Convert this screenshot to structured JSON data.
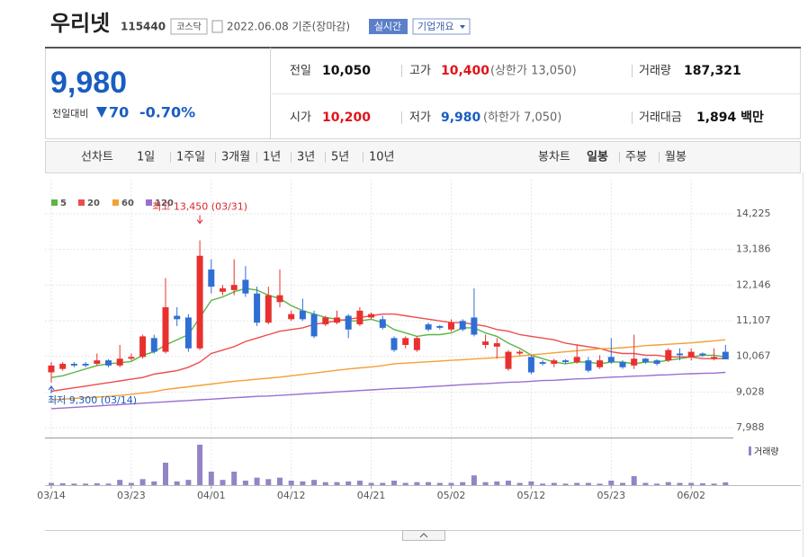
{
  "header": {
    "name": "우리넷",
    "code": "115440",
    "market": "코스닥",
    "date": "2022.06.08 기준(장마감)",
    "realtime": "실시간",
    "overview": "기업개요"
  },
  "summary": {
    "price": "9,980",
    "change_label": "전일대비",
    "change": "70",
    "change_rate": "-0.70%",
    "items": [
      {
        "label": "전일",
        "value": "10,050",
        "color": "#111111"
      },
      {
        "label": "고가",
        "value": "10,400",
        "color": "#e0141a",
        "note": "(상한가 13,050)"
      },
      {
        "label": "거래량",
        "value": "187,321",
        "color": "#111111"
      },
      {
        "label": "시가",
        "value": "10,200",
        "color": "#e0141a"
      },
      {
        "label": "저가",
        "value": "9,980",
        "color": "#1a5dc1",
        "note": "(하한가 7,050)"
      },
      {
        "label": "거래대금",
        "value": "1,894 백만",
        "color": "#111111"
      }
    ]
  },
  "tabs": {
    "line_label": "선차트",
    "line_periods": [
      "1일",
      "1주일",
      "3개월",
      "1년",
      "3년",
      "5년",
      "10년"
    ],
    "candle_label": "봉차트",
    "candle_periods": [
      "일봉",
      "주봉",
      "월봉"
    ],
    "selected_candle_period": 0
  },
  "chart_data": {
    "type": "candlestick",
    "categories": [
      "03/14",
      null,
      null,
      null,
      null,
      null,
      null,
      "03/23",
      null,
      null,
      null,
      null,
      null,
      null,
      "04/01",
      null,
      null,
      null,
      null,
      null,
      null,
      "04/12",
      null,
      null,
      null,
      null,
      null,
      null,
      "04/21",
      null,
      null,
      null,
      null,
      null,
      null,
      "05/02",
      null,
      null,
      null,
      null,
      null,
      null,
      "05/12",
      null,
      null,
      null,
      null,
      null,
      null,
      "05/23",
      null,
      null,
      null,
      null,
      null,
      null,
      "06/02",
      null,
      null,
      null
    ],
    "open": [
      9600,
      9700,
      9850,
      9850,
      9850,
      9950,
      9800,
      10000,
      10050,
      10600,
      10200,
      11250,
      11200,
      10300,
      12600,
      11950,
      12000,
      12300,
      11900,
      11050,
      11650,
      11150,
      11400,
      11300,
      11000,
      11050,
      11250,
      11000,
      11200,
      11150,
      10600,
      10400,
      10250,
      11000,
      10950,
      10850,
      11100,
      11200,
      10400,
      10350,
      9700,
      10150,
      10050,
      9900,
      9850,
      9950,
      9900,
      9950,
      9750,
      10050,
      9900,
      9800,
      10000,
      9950,
      9950,
      10150,
      10050,
      10150,
      10000,
      10200
    ],
    "high": [
      9900,
      9900,
      9900,
      9900,
      10150,
      9980,
      10400,
      10150,
      10700,
      10700,
      12350,
      11500,
      11300,
      13450,
      12900,
      12150,
      12900,
      12700,
      12100,
      12100,
      12600,
      11400,
      11750,
      11400,
      11250,
      11400,
      11300,
      11500,
      11350,
      11250,
      10650,
      10650,
      10650,
      11050,
      10980,
      11150,
      11150,
      12050,
      10700,
      10600,
      10250,
      10250,
      10100,
      9950,
      10000,
      9980,
      10400,
      10050,
      10100,
      10600,
      9950,
      10700,
      10020,
      9980,
      10300,
      10300,
      10300,
      10180,
      10300,
      10400
    ],
    "low": [
      9300,
      9650,
      9750,
      9750,
      9800,
      9750,
      9750,
      9950,
      10000,
      10150,
      10150,
      10950,
      10200,
      10250,
      11900,
      11850,
      11850,
      11800,
      10950,
      11000,
      11500,
      11100,
      11100,
      10600,
      10950,
      11000,
      10600,
      10950,
      11150,
      10850,
      10200,
      10300,
      10200,
      10800,
      10850,
      10800,
      10800,
      10650,
      10300,
      10000,
      9650,
      10100,
      9550,
      9800,
      9750,
      9850,
      9850,
      9600,
      9700,
      9850,
      9700,
      9700,
      9850,
      9800,
      9900,
      9950,
      9950,
      10050,
      9950,
      9980
    ],
    "close": [
      9800,
      9850,
      9800,
      9800,
      9950,
      9800,
      10000,
      10050,
      10650,
      10200,
      11500,
      11150,
      10300,
      13000,
      12100,
      12050,
      12150,
      11900,
      11050,
      11850,
      11850,
      11300,
      11150,
      10650,
      11200,
      11200,
      10850,
      11400,
      11300,
      10900,
      10250,
      10600,
      10600,
      10850,
      10900,
      11050,
      10850,
      10700,
      10500,
      10450,
      10200,
      10200,
      9600,
      9850,
      9950,
      9900,
      10050,
      9650,
      9950,
      9900,
      9750,
      10000,
      9900,
      9850,
      10250,
      10100,
      10200,
      10100,
      10050,
      9980
    ],
    "up_color": "#e8312f",
    "down_color": "#2f6fd4",
    "series": [
      {
        "name": "5",
        "color": "#5bb544",
        "values": [
          9450,
          9500,
          9600,
          9700,
          9800,
          9850,
          9880,
          9920,
          10100,
          10200,
          10400,
          10550,
          10700,
          11200,
          11700,
          11800,
          11950,
          12050,
          12000,
          11850,
          11750,
          11550,
          11400,
          11300,
          11200,
          11150,
          11100,
          11100,
          11150,
          11050,
          10850,
          10750,
          10650,
          10700,
          10700,
          10750,
          10900,
          10900,
          10750,
          10650,
          10450,
          10300,
          10100,
          10000,
          9900,
          9850,
          9900,
          9900,
          9850,
          9900,
          9900,
          9850,
          9900,
          9900,
          9950,
          10000,
          10050,
          10100,
          10100,
          10050
        ]
      },
      {
        "name": "20",
        "color": "#ec4d4d",
        "values": [
          9050,
          9100,
          9150,
          9200,
          9250,
          9300,
          9350,
          9400,
          9450,
          9550,
          9600,
          9650,
          9750,
          9900,
          10150,
          10250,
          10350,
          10500,
          10600,
          10700,
          10800,
          10850,
          10900,
          11000,
          11050,
          11100,
          11150,
          11200,
          11250,
          11300,
          11300,
          11250,
          11200,
          11150,
          11100,
          11050,
          11050,
          11000,
          10950,
          10850,
          10800,
          10700,
          10650,
          10600,
          10550,
          10450,
          10400,
          10350,
          10300,
          10200,
          10150,
          10150,
          10100,
          10100,
          10050,
          10050,
          10050,
          10000,
          10000,
          10000
        ]
      },
      {
        "name": "60",
        "color": "#f3a034",
        "values": [
          8800,
          8820,
          8840,
          8860,
          8880,
          8900,
          8930,
          8960,
          9000,
          9040,
          9100,
          9140,
          9180,
          9220,
          9260,
          9300,
          9340,
          9370,
          9400,
          9430,
          9460,
          9500,
          9540,
          9580,
          9620,
          9660,
          9700,
          9730,
          9760,
          9800,
          9850,
          9870,
          9890,
          9910,
          9930,
          9950,
          9970,
          9990,
          10010,
          10030,
          10050,
          10080,
          10110,
          10140,
          10170,
          10200,
          10230,
          10260,
          10290,
          10300,
          10320,
          10350,
          10380,
          10400,
          10420,
          10440,
          10460,
          10490,
          10520,
          10550
        ]
      },
      {
        "name": "120",
        "color": "#9b6fd0",
        "values": [
          8540,
          8560,
          8580,
          8600,
          8620,
          8640,
          8660,
          8680,
          8700,
          8720,
          8740,
          8760,
          8780,
          8800,
          8820,
          8840,
          8860,
          8880,
          8900,
          8910,
          8930,
          8950,
          8970,
          8990,
          9010,
          9030,
          9050,
          9070,
          9090,
          9110,
          9130,
          9140,
          9160,
          9180,
          9200,
          9220,
          9240,
          9260,
          9270,
          9290,
          9310,
          9320,
          9340,
          9360,
          9370,
          9390,
          9410,
          9420,
          9440,
          9460,
          9470,
          9490,
          9500,
          9520,
          9530,
          9550,
          9560,
          9570,
          9580,
          9600
        ]
      }
    ],
    "volume": {
      "name": "거래량",
      "color": "#9484c6",
      "values": [
        150000,
        120000,
        100000,
        100000,
        120000,
        100000,
        350000,
        150000,
        400000,
        250000,
        1500000,
        250000,
        350000,
        2700000,
        900000,
        350000,
        900000,
        300000,
        500000,
        400000,
        500000,
        300000,
        250000,
        350000,
        200000,
        200000,
        250000,
        300000,
        150000,
        150000,
        300000,
        150000,
        200000,
        200000,
        150000,
        150000,
        200000,
        650000,
        200000,
        250000,
        300000,
        150000,
        250000,
        100000,
        150000,
        100000,
        150000,
        150000,
        100000,
        300000,
        150000,
        600000,
        150000,
        100000,
        200000,
        150000,
        150000,
        120000,
        100000,
        187321
      ]
    },
    "volume_ylim": [
      0,
      3000000
    ],
    "ylim": [
      7700,
      15220
    ],
    "yticks": [
      {
        "value": 7988,
        "label": "7,988"
      },
      {
        "value": 9028,
        "label": "9,028"
      },
      {
        "value": 10067,
        "label": "10,067"
      },
      {
        "value": 11107,
        "label": "11,107"
      },
      {
        "value": 12146,
        "label": "12,146"
      },
      {
        "value": 13186,
        "label": "13,186"
      },
      {
        "value": 14225,
        "label": "14,225"
      }
    ],
    "grid": true,
    "annotations": {
      "high": "최고 13,450 (03/31)",
      "low": "최저 9,300 (03/14)"
    }
  }
}
